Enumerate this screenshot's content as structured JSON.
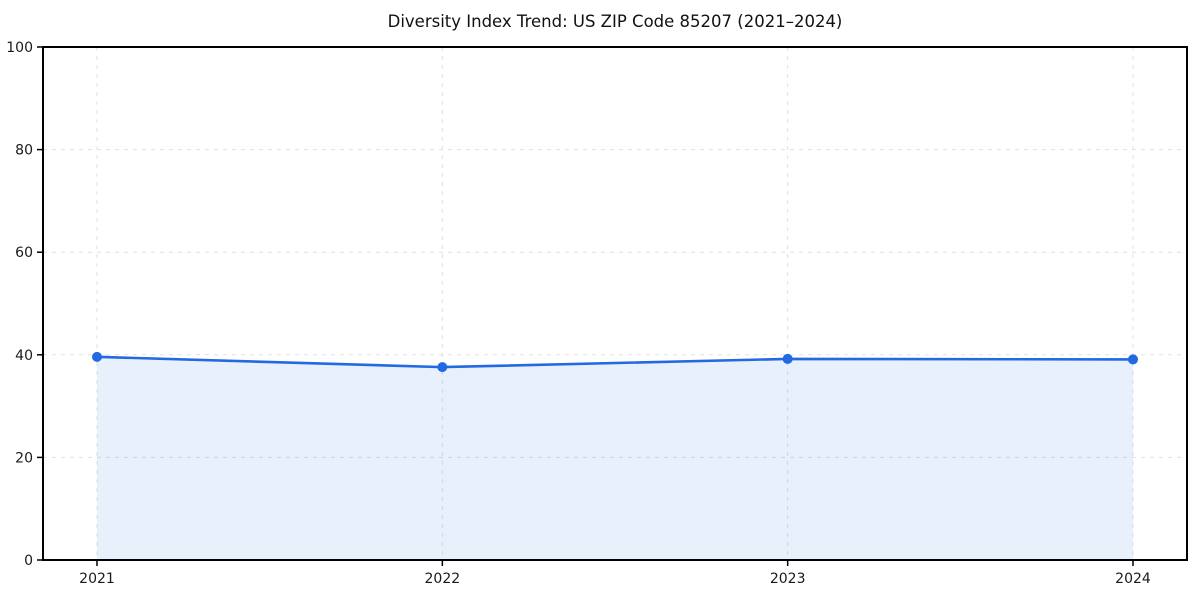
{
  "chart_data": {
    "type": "area",
    "title": "Diversity Index Trend: US ZIP Code 85207 (2021–2024)",
    "categories": [
      "2021",
      "2022",
      "2023",
      "2024"
    ],
    "series": [
      {
        "name": "Diversity Index",
        "values": [
          39.6,
          37.6,
          39.2,
          39.1
        ]
      }
    ],
    "xlabel": "",
    "ylabel": "",
    "ylim": [
      0,
      100
    ],
    "yticks": [
      0,
      20,
      40,
      60,
      80,
      100
    ],
    "grid": true,
    "grid_style": "dashed",
    "legend": "none",
    "marker": "circle",
    "colors": {
      "line": "#2269E2",
      "marker": "#2269E2",
      "fill": "#2269E2",
      "fill_opacity": 0.1,
      "grid": "#E0E0E0",
      "spine": "#000000",
      "text": "#1a1a1a",
      "background": "#ffffff"
    }
  }
}
